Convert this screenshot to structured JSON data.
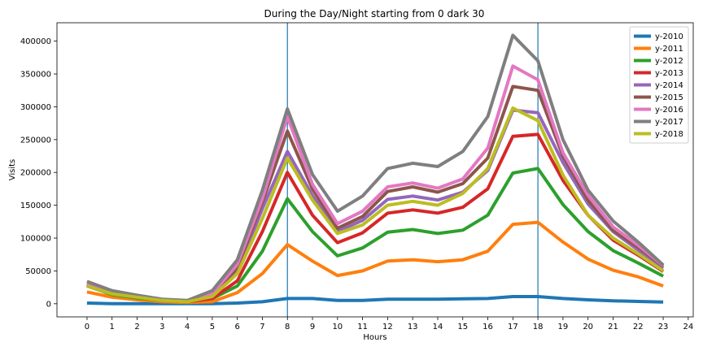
{
  "chart_data": {
    "type": "line",
    "title": "During the Day/Night starting from 0 dark 30",
    "xlabel": "Hours",
    "ylabel": "Visits",
    "x": [
      0,
      1,
      2,
      3,
      4,
      5,
      6,
      7,
      8,
      9,
      10,
      11,
      12,
      13,
      14,
      15,
      16,
      17,
      18,
      19,
      20,
      21,
      22,
      23
    ],
    "xticks": [
      0,
      1,
      2,
      3,
      4,
      5,
      6,
      7,
      8,
      9,
      10,
      11,
      12,
      13,
      14,
      15,
      16,
      17,
      18,
      19,
      20,
      21,
      22,
      23,
      24
    ],
    "yticks": [
      0,
      50000,
      100000,
      150000,
      200000,
      250000,
      300000,
      350000,
      400000
    ],
    "xlim": [
      -1.2,
      24.2
    ],
    "ylim": [
      -20000,
      428000
    ],
    "vlines": [
      8,
      18
    ],
    "vline_color": "#1f77b4",
    "legend_position": "upper right",
    "grid": false,
    "series": [
      {
        "name": "y-2010",
        "color": "#1f77b4",
        "values": [
          1000,
          0,
          0,
          0,
          0,
          0,
          1000,
          3000,
          8000,
          8000,
          5000,
          5000,
          7000,
          7000,
          7000,
          7500,
          8000,
          11000,
          11000,
          8000,
          6000,
          4500,
          3500,
          2500
        ]
      },
      {
        "name": "y-2011",
        "color": "#ff7f0e",
        "values": [
          18000,
          10000,
          6000,
          3000,
          2000,
          3000,
          17000,
          46000,
          90000,
          65000,
          43000,
          50000,
          65000,
          67000,
          64000,
          67000,
          80000,
          121000,
          124000,
          94000,
          68000,
          51000,
          41000,
          27000
        ]
      },
      {
        "name": "y-2012",
        "color": "#2ca02c",
        "values": [
          27000,
          14000,
          9000,
          5000,
          3000,
          8000,
          27000,
          80000,
          160000,
          110000,
          73000,
          85000,
          109000,
          113000,
          107000,
          112000,
          135000,
          199000,
          206000,
          151000,
          110000,
          81000,
          62000,
          42000
        ]
      },
      {
        "name": "y-2013",
        "color": "#d62728",
        "values": [
          28000,
          16000,
          10000,
          5000,
          3000,
          8000,
          35000,
          110000,
          200000,
          135000,
          93000,
          108000,
          138000,
          143000,
          138000,
          147000,
          175000,
          255000,
          258000,
          188000,
          135000,
          97000,
          74000,
          49000
        ]
      },
      {
        "name": "y-2014",
        "color": "#9467bd",
        "values": [
          29000,
          17000,
          11000,
          5500,
          3500,
          12000,
          50000,
          145000,
          232000,
          165000,
          110000,
          127000,
          159000,
          164000,
          158000,
          170000,
          203000,
          295000,
          291000,
          215000,
          152000,
          110000,
          82000,
          54000
        ]
      },
      {
        "name": "y-2015",
        "color": "#8c564b",
        "values": [
          30000,
          18000,
          11500,
          6000,
          3500,
          13000,
          55000,
          155000,
          263000,
          175000,
          115000,
          133000,
          171000,
          178000,
          170000,
          183000,
          222000,
          331000,
          325000,
          225000,
          158000,
          112000,
          86000,
          57000
        ]
      },
      {
        "name": "y-2016",
        "color": "#e377c2",
        "values": [
          31000,
          18500,
          12000,
          6500,
          4000,
          15000,
          60000,
          160000,
          285000,
          182000,
          122000,
          141000,
          178000,
          184000,
          176000,
          190000,
          237000,
          362000,
          341000,
          230000,
          165000,
          117000,
          89000,
          58000
        ]
      },
      {
        "name": "y-2017",
        "color": "#7f7f7f",
        "values": [
          34000,
          20000,
          13000,
          7000,
          5000,
          20000,
          67000,
          173000,
          297000,
          197000,
          141000,
          164000,
          206000,
          214000,
          209000,
          232000,
          285000,
          409000,
          370000,
          250000,
          173000,
          126000,
          94000,
          59000
        ]
      },
      {
        "name": "y-2018",
        "color": "#bcbd22",
        "values": [
          27000,
          15000,
          10000,
          5000,
          3000,
          11000,
          46000,
          130000,
          222000,
          158000,
          107000,
          120000,
          150000,
          156000,
          150000,
          168000,
          206000,
          298000,
          279000,
          196000,
          135000,
          100000,
          76000,
          50000
        ]
      }
    ]
  }
}
